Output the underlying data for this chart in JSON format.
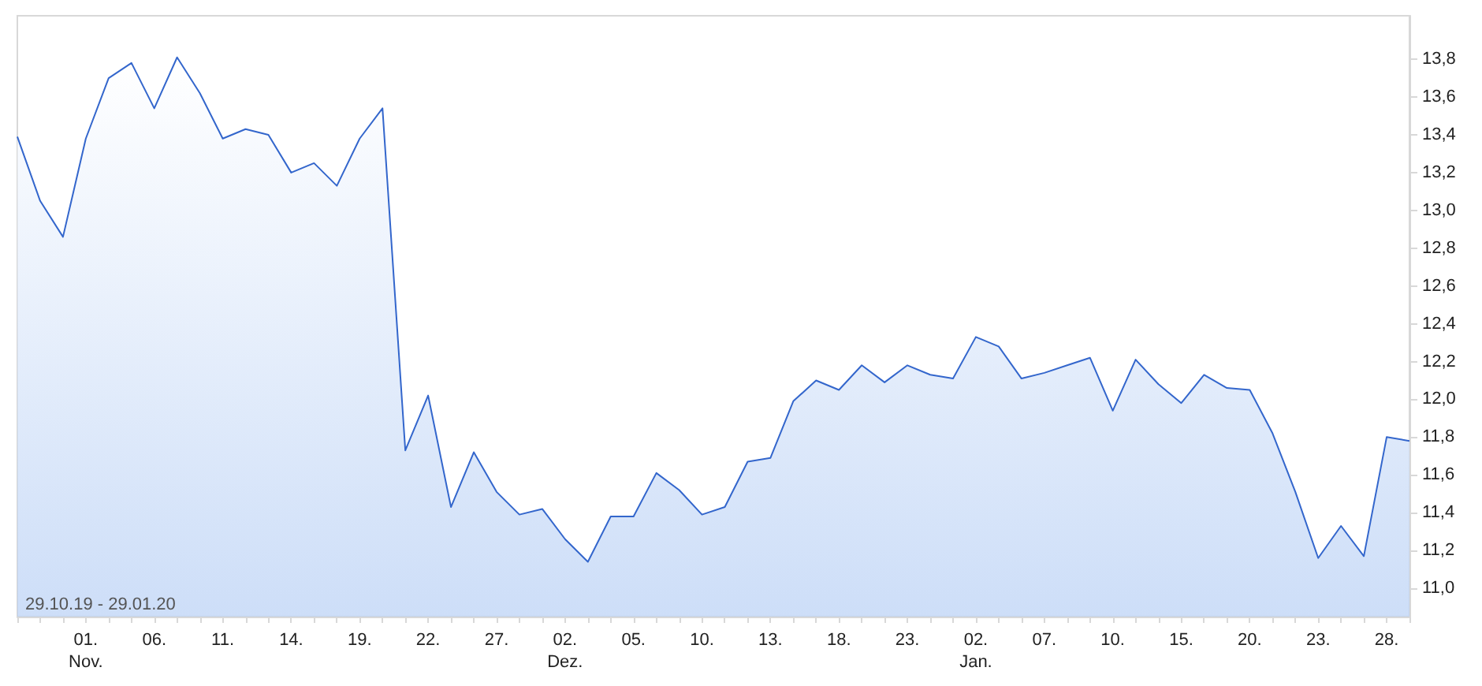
{
  "chart_data": {
    "type": "area",
    "categories": [
      null,
      null,
      null,
      "01.\nNov.",
      null,
      null,
      "06.",
      null,
      null,
      "11.",
      null,
      null,
      "14.",
      null,
      null,
      "19.",
      null,
      null,
      "22.",
      null,
      null,
      "27.",
      null,
      null,
      "02.\nDez.",
      null,
      null,
      "05.",
      null,
      null,
      "10.",
      null,
      null,
      "13.",
      null,
      null,
      "18.",
      null,
      null,
      "23.",
      null,
      null,
      "02.\nJan.",
      null,
      null,
      "07.",
      null,
      null,
      "10.",
      null,
      null,
      "15.",
      null,
      null,
      "20.",
      null,
      null,
      "23.",
      null,
      null,
      "28.",
      null
    ],
    "series": [
      {
        "color": "#3366cc",
        "values": [
          13.39,
          13.05,
          12.86,
          13.38,
          13.7,
          13.78,
          13.54,
          13.81,
          13.62,
          13.38,
          13.43,
          13.4,
          13.2,
          13.25,
          13.13,
          13.38,
          13.54,
          11.73,
          12.02,
          11.43,
          11.72,
          11.51,
          11.39,
          11.42,
          11.26,
          11.14,
          11.38,
          11.38,
          11.61,
          11.52,
          11.39,
          11.43,
          11.67,
          11.69,
          11.99,
          12.1,
          12.05,
          12.18,
          12.09,
          12.18,
          12.13,
          12.11,
          12.33,
          12.28,
          12.11,
          12.14,
          12.18,
          12.22,
          11.94,
          12.21,
          12.08,
          11.98,
          12.13,
          12.06,
          12.05,
          11.82,
          11.51,
          11.16,
          11.33,
          11.17,
          11.8,
          11.78
        ]
      }
    ],
    "ylim": [
      10.85,
      14.03
    ],
    "yticks": [
      {
        "value": 11,
        "label": "11,0"
      },
      {
        "value": 11.2,
        "label": "11,2"
      },
      {
        "value": 11.4,
        "label": "11,4"
      },
      {
        "value": 11.6,
        "label": "11,6"
      },
      {
        "value": 11.8,
        "label": "11,8"
      },
      {
        "value": 12,
        "label": "12,0"
      },
      {
        "value": 12.2,
        "label": "12,2"
      },
      {
        "value": 12.4,
        "label": "12,4"
      },
      {
        "value": 12.6,
        "label": "12,6"
      },
      {
        "value": 12.8,
        "label": "12,8"
      },
      {
        "value": 13,
        "label": "13,0"
      },
      {
        "value": 13.2,
        "label": "13,2"
      },
      {
        "value": 13.4,
        "label": "13,4"
      },
      {
        "value": 13.6,
        "label": "13,6"
      },
      {
        "value": 13.8,
        "label": "13,8"
      }
    ],
    "annotations": [
      "29.10.19 - 29.01.20"
    ],
    "grid": false,
    "marker": "none",
    "line_style": "solid"
  }
}
